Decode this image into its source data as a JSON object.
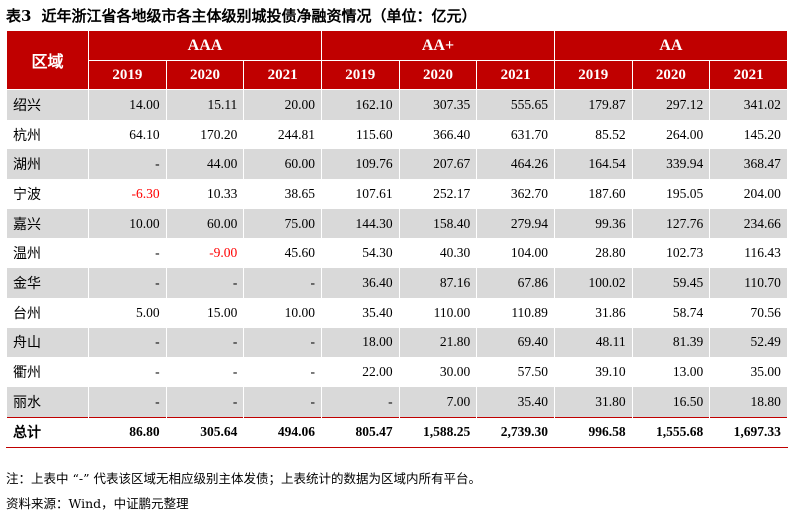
{
  "title": {
    "number": "表3",
    "text": "近年浙江省各地级市各主体级别城投债净融资情况（单位：亿元）"
  },
  "table": {
    "region_header": "区域",
    "groups": [
      "AAA",
      "AA+",
      "AA"
    ],
    "years": [
      "2019",
      "2020",
      "2021",
      "2019",
      "2020",
      "2021",
      "2019",
      "2020",
      "2021"
    ],
    "rows": [
      {
        "name": "绍兴",
        "values": [
          "14.00",
          "15.11",
          "20.00",
          "162.10",
          "307.35",
          "555.65",
          "179.87",
          "297.12",
          "341.02"
        ]
      },
      {
        "name": "杭州",
        "values": [
          "64.10",
          "170.20",
          "244.81",
          "115.60",
          "366.40",
          "631.70",
          "85.52",
          "264.00",
          "145.20"
        ]
      },
      {
        "name": "湖州",
        "values": [
          "-",
          "44.00",
          "60.00",
          "109.76",
          "207.67",
          "464.26",
          "164.54",
          "339.94",
          "368.47"
        ]
      },
      {
        "name": "宁波",
        "values": [
          "-6.30",
          "10.33",
          "38.65",
          "107.61",
          "252.17",
          "362.70",
          "187.60",
          "195.05",
          "204.00"
        ]
      },
      {
        "name": "嘉兴",
        "values": [
          "10.00",
          "60.00",
          "75.00",
          "144.30",
          "158.40",
          "279.94",
          "99.36",
          "127.76",
          "234.66"
        ]
      },
      {
        "name": "温州",
        "values": [
          "-",
          "-9.00",
          "45.60",
          "54.30",
          "40.30",
          "104.00",
          "28.80",
          "102.73",
          "116.43"
        ]
      },
      {
        "name": "金华",
        "values": [
          "-",
          "-",
          "-",
          "36.40",
          "87.16",
          "67.86",
          "100.02",
          "59.45",
          "110.70"
        ]
      },
      {
        "name": "台州",
        "values": [
          "5.00",
          "15.00",
          "10.00",
          "35.40",
          "110.00",
          "110.89",
          "31.86",
          "58.74",
          "70.56"
        ]
      },
      {
        "name": "舟山",
        "values": [
          "-",
          "-",
          "-",
          "18.00",
          "21.80",
          "69.40",
          "48.11",
          "81.39",
          "52.49"
        ]
      },
      {
        "name": "衢州",
        "values": [
          "-",
          "-",
          "-",
          "22.00",
          "30.00",
          "57.50",
          "39.10",
          "13.00",
          "35.00"
        ]
      },
      {
        "name": "丽水",
        "values": [
          "-",
          "-",
          "-",
          "-",
          "7.00",
          "35.40",
          "31.80",
          "16.50",
          "18.80"
        ]
      }
    ],
    "total": {
      "name": "总计",
      "values": [
        "86.80",
        "305.64",
        "494.06",
        "805.47",
        "1,588.25",
        "2,739.30",
        "996.58",
        "1,555.68",
        "1,697.33"
      ]
    },
    "header_color": "#c00000",
    "negative_color": "#ff0000",
    "stripe_color": "#d9d9d9"
  },
  "notes": {
    "note": "注：上表中 “-” 代表该区域无相应级别主体发债；上表统计的数据为区域内所有平台。",
    "source": "资料来源：Wind，中证鹏元整理"
  }
}
